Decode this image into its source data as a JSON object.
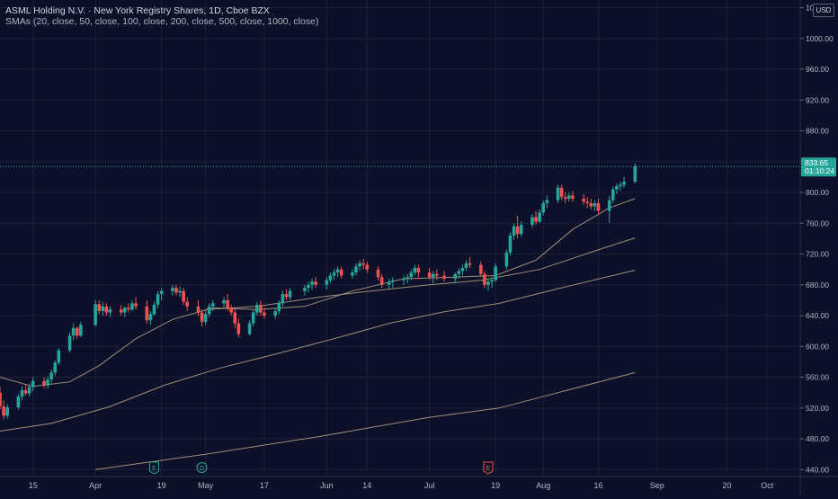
{
  "header": {
    "symbol_line": "ASML Holding N.V. · New York Registry Shares, 1D, Cboe BZX",
    "sma_line": "SMAs (20, close, 50, close, 100, close, 200, close, 500, close, 1000, close)"
  },
  "currency": "USD",
  "price_tag": {
    "price": "833.65",
    "countdown": "01:10:24"
  },
  "colors": {
    "background": "#0c1029",
    "up": "#26a69a",
    "down": "#ef5350",
    "sma": "#b7a487",
    "last_price_line": "#26a69a"
  },
  "events": [
    {
      "label": "E",
      "date": "2024-04-17",
      "color": "#26a69a"
    },
    {
      "label": "D",
      "date": "2024-04-30",
      "color": "#26a69a"
    },
    {
      "label": "E",
      "date": "2024-07-17",
      "color": "#ef5350"
    }
  ],
  "chart_data": {
    "type": "candlestick",
    "x_range": [
      "2024-03-06",
      "2024-10-10"
    ],
    "y_range": [
      431,
      1050
    ],
    "y_ticks": [
      440,
      480,
      520,
      560,
      600,
      640,
      680,
      720,
      760,
      800,
      840,
      880,
      920,
      960,
      1000,
      1040
    ],
    "y_tick_labels": [
      "440.00",
      "480.00",
      "520.00",
      "560.00",
      "600.00",
      "640.00",
      "680.00",
      "720.00",
      "760.00",
      "800.00",
      "840.00",
      "880.00",
      "920.00",
      "960.00",
      "1000.00",
      "1040.00"
    ],
    "x_ticks": [
      {
        "label": "15",
        "date": "2024-03-15"
      },
      {
        "label": "Apr",
        "date": "2024-04-01"
      },
      {
        "label": "19",
        "date": "2024-04-19"
      },
      {
        "label": "May",
        "date": "2024-05-01"
      },
      {
        "label": "17",
        "date": "2024-05-17"
      },
      {
        "label": "Jun",
        "date": "2024-06-03"
      },
      {
        "label": "14",
        "date": "2024-06-14"
      },
      {
        "label": "Jul",
        "date": "2024-07-01"
      },
      {
        "label": "19",
        "date": "2024-07-19"
      },
      {
        "label": "Aug",
        "date": "2024-08-01"
      },
      {
        "label": "16",
        "date": "2024-08-16"
      },
      {
        "label": "Sep",
        "date": "2024-09-01"
      },
      {
        "label": "20",
        "date": "2024-09-20"
      },
      {
        "label": "Oct",
        "date": "2024-10-01"
      }
    ],
    "candles": [
      [
        "2024-03-06",
        540,
        548,
        518,
        522
      ],
      [
        "2024-03-07",
        522,
        530,
        505,
        510
      ],
      [
        "2024-03-08",
        510,
        525,
        506,
        521
      ],
      [
        "2024-03-11",
        521,
        538,
        518,
        535
      ],
      [
        "2024-03-12",
        535,
        548,
        530,
        543
      ],
      [
        "2024-03-13",
        543,
        550,
        536,
        539
      ],
      [
        "2024-03-14",
        539,
        552,
        535,
        547
      ],
      [
        "2024-03-15",
        547,
        560,
        542,
        555
      ],
      [
        "2024-03-18",
        555,
        560,
        546,
        549
      ],
      [
        "2024-03-19",
        549,
        561,
        545,
        557
      ],
      [
        "2024-03-20",
        557,
        570,
        552,
        566
      ],
      [
        "2024-03-21",
        566,
        582,
        562,
        579
      ],
      [
        "2024-03-22",
        579,
        598,
        576,
        595
      ],
      [
        "2024-03-25",
        595,
        618,
        592,
        614
      ],
      [
        "2024-03-26",
        614,
        630,
        608,
        624
      ],
      [
        "2024-03-27",
        624,
        626,
        610,
        614
      ],
      [
        "2024-03-28",
        614,
        632,
        612,
        628
      ],
      [
        "2024-04-01",
        628,
        660,
        626,
        655
      ],
      [
        "2024-04-02",
        655,
        660,
        642,
        646
      ],
      [
        "2024-04-03",
        646,
        658,
        640,
        652
      ],
      [
        "2024-04-04",
        652,
        656,
        640,
        644
      ],
      [
        "2024-04-05",
        644,
        652,
        638,
        648
      ],
      [
        "2024-04-08",
        648,
        654,
        640,
        644
      ],
      [
        "2024-04-09",
        644,
        652,
        638,
        650
      ],
      [
        "2024-04-10",
        650,
        656,
        644,
        648
      ],
      [
        "2024-04-11",
        648,
        660,
        646,
        656
      ],
      [
        "2024-04-12",
        656,
        664,
        648,
        652
      ],
      [
        "2024-04-15",
        652,
        660,
        630,
        634
      ],
      [
        "2024-04-16",
        634,
        646,
        628,
        642
      ],
      [
        "2024-04-17",
        642,
        658,
        640,
        654
      ],
      [
        "2024-04-18",
        654,
        672,
        650,
        668
      ],
      [
        "2024-04-19",
        668,
        676,
        660,
        672
      ],
      [
        "2024-04-22",
        672,
        680,
        666,
        676
      ],
      [
        "2024-04-23",
        676,
        680,
        666,
        670
      ],
      [
        "2024-04-24",
        670,
        678,
        664,
        672
      ],
      [
        "2024-04-25",
        672,
        676,
        654,
        658
      ],
      [
        "2024-04-26",
        658,
        664,
        646,
        652
      ],
      [
        "2024-04-29",
        652,
        660,
        640,
        644
      ],
      [
        "2024-04-30",
        644,
        648,
        626,
        632
      ],
      [
        "2024-05-01",
        632,
        646,
        628,
        642
      ],
      [
        "2024-05-02",
        642,
        656,
        638,
        652
      ],
      [
        "2024-05-03",
        652,
        660,
        646,
        656
      ],
      [
        "2024-05-06",
        656,
        664,
        650,
        660
      ],
      [
        "2024-05-07",
        660,
        668,
        646,
        650
      ],
      [
        "2024-05-08",
        650,
        654,
        640,
        644
      ],
      [
        "2024-05-09",
        644,
        650,
        624,
        630
      ],
      [
        "2024-05-10",
        630,
        636,
        612,
        616
      ],
      [
        "2024-05-13",
        616,
        634,
        614,
        630
      ],
      [
        "2024-05-14",
        630,
        648,
        626,
        644
      ],
      [
        "2024-05-15",
        644,
        658,
        640,
        654
      ],
      [
        "2024-05-16",
        654,
        660,
        640,
        644
      ],
      [
        "2024-05-17",
        644,
        650,
        636,
        640
      ],
      [
        "2024-05-20",
        640,
        650,
        636,
        646
      ],
      [
        "2024-05-21",
        646,
        660,
        642,
        656
      ],
      [
        "2024-05-22",
        656,
        672,
        652,
        668
      ],
      [
        "2024-05-23",
        668,
        674,
        660,
        664
      ],
      [
        "2024-05-24",
        664,
        676,
        660,
        672
      ],
      [
        "2024-05-28",
        672,
        680,
        666,
        676
      ],
      [
        "2024-05-29",
        676,
        684,
        670,
        680
      ],
      [
        "2024-05-30",
        680,
        688,
        674,
        684
      ],
      [
        "2024-05-31",
        684,
        690,
        676,
        680
      ],
      [
        "2024-06-03",
        680,
        690,
        674,
        686
      ],
      [
        "2024-06-04",
        686,
        696,
        682,
        692
      ],
      [
        "2024-06-05",
        692,
        700,
        686,
        696
      ],
      [
        "2024-06-06",
        696,
        704,
        690,
        700
      ],
      [
        "2024-06-07",
        700,
        704,
        688,
        692
      ],
      [
        "2024-06-10",
        692,
        700,
        688,
        696
      ],
      [
        "2024-06-11",
        696,
        708,
        692,
        704
      ],
      [
        "2024-06-12",
        704,
        712,
        698,
        708
      ],
      [
        "2024-06-13",
        708,
        714,
        700,
        706
      ],
      [
        "2024-06-14",
        706,
        710,
        696,
        700
      ],
      [
        "2024-06-17",
        700,
        704,
        686,
        690
      ],
      [
        "2024-06-18",
        690,
        694,
        676,
        680
      ],
      [
        "2024-06-20",
        680,
        688,
        674,
        684
      ],
      [
        "2024-06-21",
        684,
        690,
        676,
        686
      ],
      [
        "2024-06-24",
        686,
        692,
        680,
        688
      ],
      [
        "2024-06-25",
        688,
        694,
        682,
        690
      ],
      [
        "2024-06-26",
        690,
        700,
        686,
        696
      ],
      [
        "2024-06-27",
        696,
        706,
        692,
        702
      ],
      [
        "2024-06-28",
        702,
        706,
        690,
        696
      ],
      [
        "2024-07-01",
        696,
        702,
        686,
        690
      ],
      [
        "2024-07-02",
        690,
        698,
        682,
        694
      ],
      [
        "2024-07-03",
        694,
        700,
        686,
        692
      ],
      [
        "2024-07-05",
        692,
        698,
        684,
        688
      ],
      [
        "2024-07-08",
        688,
        696,
        682,
        694
      ],
      [
        "2024-07-09",
        694,
        702,
        688,
        698
      ],
      [
        "2024-07-10",
        698,
        706,
        692,
        702
      ],
      [
        "2024-07-11",
        702,
        712,
        698,
        708
      ],
      [
        "2024-07-12",
        708,
        716,
        702,
        706
      ],
      [
        "2024-07-15",
        706,
        710,
        690,
        694
      ],
      [
        "2024-07-16",
        694,
        698,
        676,
        680
      ],
      [
        "2024-07-17",
        680,
        688,
        672,
        684
      ],
      [
        "2024-07-18",
        684,
        690,
        676,
        686
      ],
      [
        "2024-07-19",
        686,
        708,
        684,
        704
      ],
      [
        "2024-07-22",
        704,
        726,
        700,
        722
      ],
      [
        "2024-07-23",
        722,
        748,
        718,
        744
      ],
      [
        "2024-07-24",
        744,
        760,
        738,
        756
      ],
      [
        "2024-07-25",
        756,
        770,
        740,
        746
      ],
      [
        "2024-07-26",
        746,
        762,
        742,
        758
      ],
      [
        "2024-07-29",
        758,
        772,
        754,
        768
      ],
      [
        "2024-07-30",
        768,
        776,
        758,
        762
      ],
      [
        "2024-07-31",
        762,
        778,
        760,
        774
      ],
      [
        "2024-08-01",
        774,
        790,
        770,
        786
      ],
      [
        "2024-08-02",
        786,
        796,
        780,
        790
      ],
      [
        "2024-08-05",
        790,
        810,
        786,
        806
      ],
      [
        "2024-08-06",
        806,
        810,
        790,
        794
      ],
      [
        "2024-08-07",
        794,
        800,
        786,
        792
      ],
      [
        "2024-08-08",
        792,
        800,
        788,
        796
      ],
      [
        "2024-08-09",
        796,
        802,
        788,
        792
      ],
      [
        "2024-08-12",
        792,
        798,
        784,
        788
      ],
      [
        "2024-08-13",
        788,
        794,
        780,
        786
      ],
      [
        "2024-08-14",
        786,
        792,
        778,
        782
      ],
      [
        "2024-08-15",
        782,
        790,
        776,
        786
      ],
      [
        "2024-08-16",
        786,
        792,
        772,
        776
      ],
      [
        "2024-08-19",
        776,
        796,
        760,
        790
      ],
      [
        "2024-08-20",
        790,
        808,
        786,
        804
      ],
      [
        "2024-08-21",
        804,
        812,
        798,
        808
      ],
      [
        "2024-08-22",
        808,
        814,
        802,
        810
      ],
      [
        "2024-08-23",
        810,
        820,
        806,
        814
      ],
      [
        "2024-08-26",
        814,
        838,
        812,
        834
      ]
    ],
    "smas": [
      {
        "name": "SMA 20",
        "points": [
          [
            "2024-03-06",
            560
          ],
          [
            "2024-03-15",
            548
          ],
          [
            "2024-03-25",
            554
          ],
          [
            "2024-04-02",
            575
          ],
          [
            "2024-04-12",
            610
          ],
          [
            "2024-04-22",
            635
          ],
          [
            "2024-05-03",
            650
          ],
          [
            "2024-05-15",
            648
          ],
          [
            "2024-05-28",
            652
          ],
          [
            "2024-06-10",
            672
          ],
          [
            "2024-06-24",
            688
          ],
          [
            "2024-07-08",
            690
          ],
          [
            "2024-07-19",
            692
          ],
          [
            "2024-07-30",
            712
          ],
          [
            "2024-08-09",
            752
          ],
          [
            "2024-08-19",
            780
          ],
          [
            "2024-08-26",
            792
          ]
        ]
      },
      {
        "name": "SMA 50",
        "points": [
          [
            "2024-05-01",
            648
          ],
          [
            "2024-05-15",
            652
          ],
          [
            "2024-06-01",
            664
          ],
          [
            "2024-06-15",
            672
          ],
          [
            "2024-07-01",
            680
          ],
          [
            "2024-07-15",
            686
          ],
          [
            "2024-07-31",
            700
          ],
          [
            "2024-08-15",
            724
          ],
          [
            "2024-08-26",
            741
          ]
        ]
      },
      {
        "name": "SMA 100",
        "points": [
          [
            "2024-03-06",
            490
          ],
          [
            "2024-03-20",
            500
          ],
          [
            "2024-04-05",
            522
          ],
          [
            "2024-04-20",
            550
          ],
          [
            "2024-05-05",
            572
          ],
          [
            "2024-05-20",
            590
          ],
          [
            "2024-06-05",
            610
          ],
          [
            "2024-06-20",
            630
          ],
          [
            "2024-07-05",
            645
          ],
          [
            "2024-07-20",
            656
          ],
          [
            "2024-08-05",
            675
          ],
          [
            "2024-08-26",
            699
          ]
        ]
      },
      {
        "name": "SMA 200",
        "points": [
          [
            "2024-04-01",
            440
          ],
          [
            "2024-05-01",
            460
          ],
          [
            "2024-06-01",
            483
          ],
          [
            "2024-07-01",
            508
          ],
          [
            "2024-07-20",
            520
          ],
          [
            "2024-08-05",
            540
          ],
          [
            "2024-08-26",
            566
          ]
        ]
      }
    ],
    "last_price": 833.65,
    "ylabel": "",
    "xlabel": ""
  }
}
